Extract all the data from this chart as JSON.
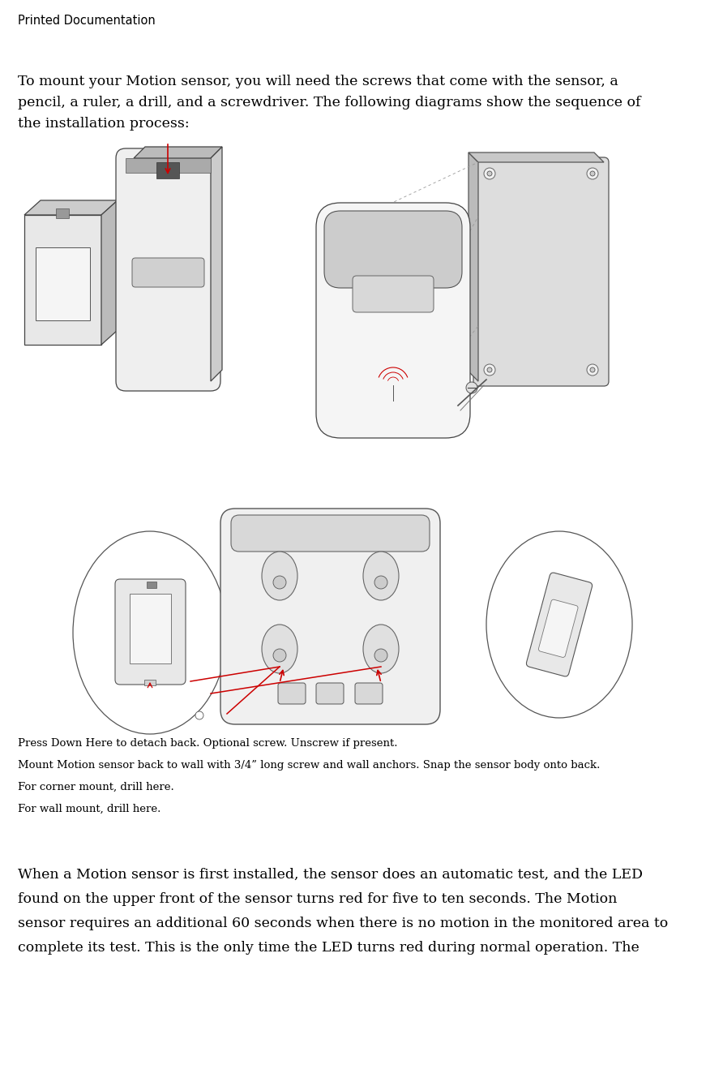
{
  "title": "Printed Documentation",
  "title_fontsize": 10.5,
  "body_fontsize": 12.5,
  "small_fontsize": 9.5,
  "bg_color": "#ffffff",
  "text_color": "#000000",
  "red_color": "#cc0000",
  "gray_line": "#888888",
  "para1_line1": "To mount your Motion sensor, you will need the screws that come with the sensor, a",
  "para1_line2": "pencil, a ruler, a drill, and a screwdriver. The following diagrams show the sequence of",
  "para1_line3": "the installation process:",
  "label1": "Press Down Here to detach back. Optional screw. Unscrew if present.",
  "label2": "Mount Motion sensor back to wall with 3/4” long screw and wall anchors. Snap the sensor body onto back.",
  "label3": "For corner mount, drill here.",
  "label4": "For wall mount, drill here.",
  "para2_line1": "When a Motion sensor is first installed, the sensor does an automatic test, and the LED",
  "para2_line2": "found on the upper front of the sensor turns red for five to ten seconds. The Motion",
  "para2_line3": "sensor requires an additional 60 seconds when there is no motion in the monitored area to",
  "para2_line4": "complete its test. This is the only time the LED turns red during normal operation. The "
}
